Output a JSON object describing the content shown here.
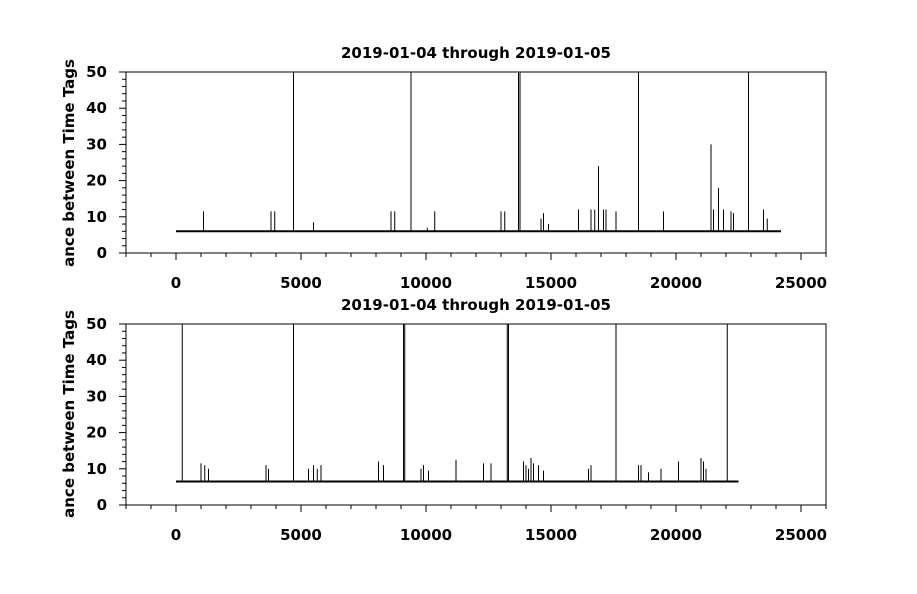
{
  "chart_data": [
    {
      "type": "line",
      "title": "2019-01-04 through 2019-01-05",
      "ylabel": "ance between Time Tags",
      "xlabel": "",
      "xlim": [
        -2000,
        26000
      ],
      "ylim": [
        0,
        50
      ],
      "xticks": [
        0,
        5000,
        10000,
        15000,
        20000,
        25000
      ],
      "yticks": [
        0,
        10,
        20,
        30,
        40,
        50
      ],
      "grid": false,
      "color": "#000000",
      "baseline": {
        "x_start": 0,
        "x_end": 24200,
        "value": 6
      },
      "spikes": [
        {
          "x": 1100,
          "y": 11.5
        },
        {
          "x": 3800,
          "y": 11.5
        },
        {
          "x": 3950,
          "y": 11.5
        },
        {
          "x": 4700,
          "y": 50
        },
        {
          "x": 5500,
          "y": 8.5
        },
        {
          "x": 8600,
          "y": 11.5
        },
        {
          "x": 8750,
          "y": 11.5
        },
        {
          "x": 9400,
          "y": 50
        },
        {
          "x": 10050,
          "y": 7
        },
        {
          "x": 10350,
          "y": 11.5
        },
        {
          "x": 13000,
          "y": 11.5
        },
        {
          "x": 13150,
          "y": 11.5
        },
        {
          "x": 13700,
          "y": 50
        },
        {
          "x": 13760,
          "y": 50
        },
        {
          "x": 14600,
          "y": 9.5
        },
        {
          "x": 14700,
          "y": 11
        },
        {
          "x": 14900,
          "y": 8
        },
        {
          "x": 16100,
          "y": 12
        },
        {
          "x": 16600,
          "y": 12
        },
        {
          "x": 16750,
          "y": 12
        },
        {
          "x": 16900,
          "y": 24
        },
        {
          "x": 17100,
          "y": 12
        },
        {
          "x": 17200,
          "y": 12
        },
        {
          "x": 17600,
          "y": 11.5
        },
        {
          "x": 18500,
          "y": 50
        },
        {
          "x": 19500,
          "y": 11.5
        },
        {
          "x": 21400,
          "y": 30
        },
        {
          "x": 21500,
          "y": 12
        },
        {
          "x": 21700,
          "y": 18
        },
        {
          "x": 21900,
          "y": 12
        },
        {
          "x": 22200,
          "y": 11.5
        },
        {
          "x": 22300,
          "y": 11
        },
        {
          "x": 22900,
          "y": 50
        },
        {
          "x": 23500,
          "y": 12
        },
        {
          "x": 23650,
          "y": 9.5
        }
      ]
    },
    {
      "type": "line",
      "title": "2019-01-04 through 2019-01-05",
      "ylabel": "ance between Time Tags",
      "xlabel": "",
      "xlim": [
        -2000,
        26000
      ],
      "ylim": [
        0,
        50
      ],
      "xticks": [
        0,
        5000,
        10000,
        15000,
        20000,
        25000
      ],
      "yticks": [
        0,
        10,
        20,
        30,
        40,
        50
      ],
      "grid": false,
      "color": "#000000",
      "baseline": {
        "x_start": 0,
        "x_end": 22500,
        "value": 6.5
      },
      "spikes": [
        {
          "x": 250,
          "y": 50
        },
        {
          "x": 1000,
          "y": 11.5
        },
        {
          "x": 1150,
          "y": 11
        },
        {
          "x": 1300,
          "y": 10
        },
        {
          "x": 3600,
          "y": 11
        },
        {
          "x": 3700,
          "y": 10
        },
        {
          "x": 4700,
          "y": 50
        },
        {
          "x": 5300,
          "y": 10
        },
        {
          "x": 5500,
          "y": 11
        },
        {
          "x": 5650,
          "y": 10
        },
        {
          "x": 5800,
          "y": 11
        },
        {
          "x": 8100,
          "y": 12
        },
        {
          "x": 8300,
          "y": 11
        },
        {
          "x": 9100,
          "y": 50
        },
        {
          "x": 9150,
          "y": 50
        },
        {
          "x": 9800,
          "y": 10
        },
        {
          "x": 9900,
          "y": 11
        },
        {
          "x": 10100,
          "y": 9.5
        },
        {
          "x": 11200,
          "y": 12.5
        },
        {
          "x": 12300,
          "y": 11.5
        },
        {
          "x": 12600,
          "y": 11.5
        },
        {
          "x": 13250,
          "y": 50
        },
        {
          "x": 13300,
          "y": 50
        },
        {
          "x": 13900,
          "y": 12
        },
        {
          "x": 14000,
          "y": 11
        },
        {
          "x": 14100,
          "y": 10
        },
        {
          "x": 14200,
          "y": 13
        },
        {
          "x": 14300,
          "y": 11.5
        },
        {
          "x": 14500,
          "y": 11
        },
        {
          "x": 14700,
          "y": 9.5
        },
        {
          "x": 16500,
          "y": 10
        },
        {
          "x": 16600,
          "y": 11
        },
        {
          "x": 17600,
          "y": 50
        },
        {
          "x": 18500,
          "y": 11
        },
        {
          "x": 18600,
          "y": 11
        },
        {
          "x": 18900,
          "y": 9
        },
        {
          "x": 19400,
          "y": 10
        },
        {
          "x": 20100,
          "y": 12
        },
        {
          "x": 21000,
          "y": 13
        },
        {
          "x": 21100,
          "y": 12
        },
        {
          "x": 21200,
          "y": 10
        },
        {
          "x": 22050,
          "y": 50
        }
      ]
    }
  ]
}
